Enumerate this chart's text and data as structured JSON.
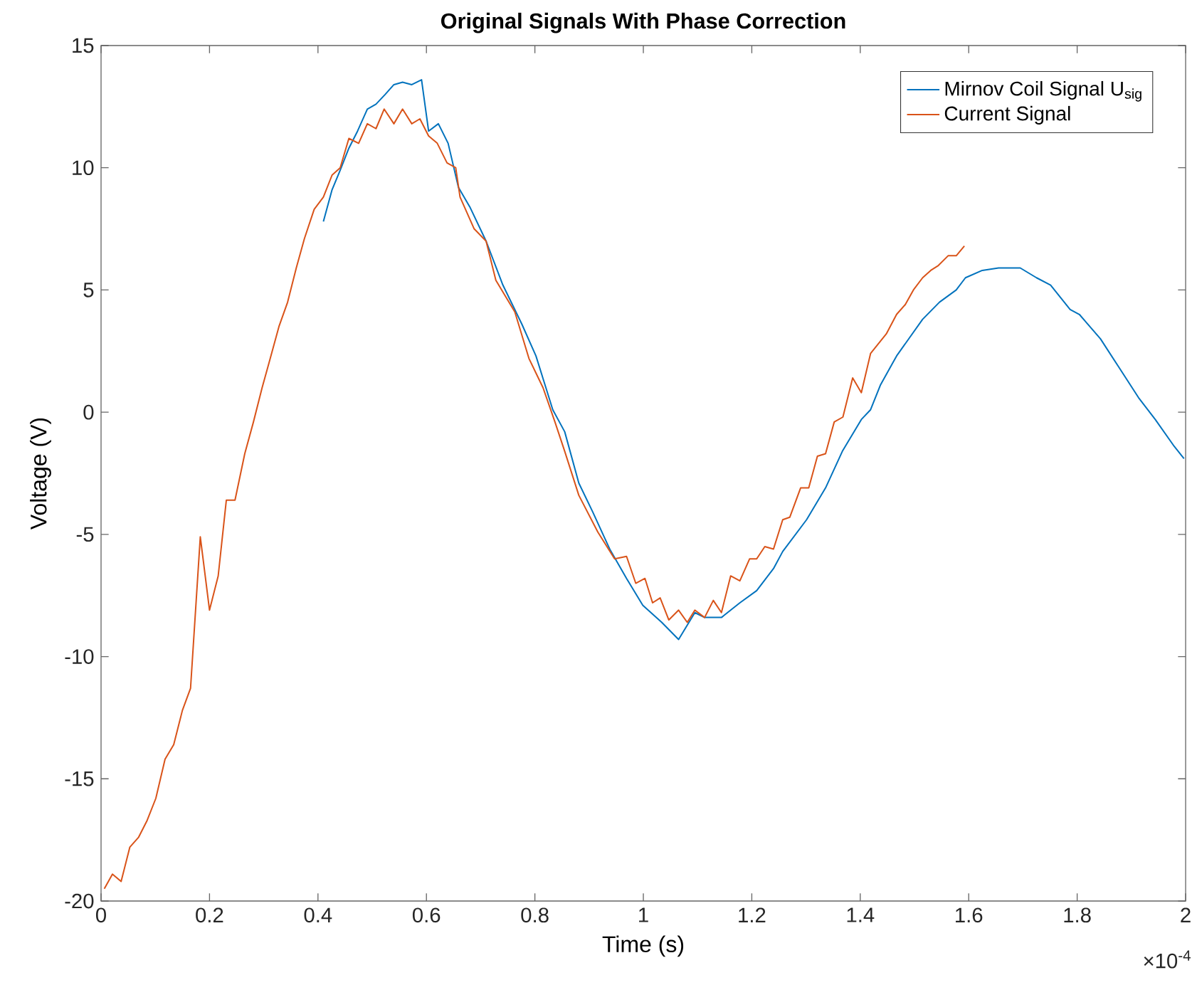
{
  "chart_data": {
    "type": "line",
    "title": "Original Signals With Phase Correction",
    "xlabel": "Time (s)",
    "ylabel": "Voltage (V)",
    "annotations": [
      "×10$^{-4}$"
    ],
    "xlim": [
      0,
      2
    ],
    "ylim": [
      -20,
      15
    ],
    "xticks": [
      0,
      0.2,
      0.4,
      0.6,
      0.8,
      1,
      1.2,
      1.4,
      1.6,
      1.8,
      2
    ],
    "yticks": [
      -20,
      -15,
      -10,
      -5,
      0,
      5,
      10,
      15
    ],
    "legend": "top right",
    "marker": "none",
    "line_style": "solid",
    "series": [
      {
        "name": "Mirnov Coil Signal U$_{sig}$",
        "color": "#0072bd",
        "x": [
          0.41,
          0.426,
          0.441,
          0.457,
          0.473,
          0.491,
          0.507,
          0.524,
          0.54,
          0.556,
          0.573,
          0.591,
          0.604,
          0.622,
          0.64,
          0.659,
          0.68,
          0.71,
          0.741,
          0.776,
          0.802,
          0.833,
          0.855,
          0.881,
          0.907,
          0.938,
          0.969,
          0.999,
          1.034,
          1.065,
          1.095,
          1.113,
          1.144,
          1.178,
          1.209,
          1.24,
          1.257,
          1.301,
          1.336,
          1.367,
          1.402,
          1.419,
          1.437,
          1.467,
          1.515,
          1.546,
          1.577,
          1.594,
          1.625,
          1.655,
          1.695,
          1.725,
          1.751,
          1.787,
          1.804,
          1.843,
          1.878,
          1.913,
          1.944,
          1.979,
          1.997
        ],
        "values": [
          7.8,
          9.1,
          9.9,
          10.8,
          11.5,
          12.4,
          12.6,
          13.0,
          13.4,
          13.5,
          13.4,
          13.6,
          11.5,
          11.8,
          11.0,
          9.2,
          8.4,
          7.0,
          5.2,
          3.6,
          2.3,
          0.1,
          -0.8,
          -2.9,
          -4.1,
          -5.6,
          -6.8,
          -7.9,
          -8.6,
          -9.3,
          -8.2,
          -8.4,
          -8.4,
          -7.8,
          -7.3,
          -6.4,
          -5.7,
          -4.4,
          -3.1,
          -1.6,
          -0.3,
          0.1,
          1.1,
          2.3,
          3.8,
          4.5,
          5.0,
          5.5,
          5.8,
          5.9,
          5.9,
          5.5,
          5.2,
          4.2,
          4.0,
          3.0,
          1.8,
          0.6,
          -0.3,
          -1.4,
          -1.9
        ]
      },
      {
        "name": "Current Signal",
        "color": "#d95319",
        "x": [
          0.006,
          0.021,
          0.037,
          0.053,
          0.069,
          0.085,
          0.101,
          0.118,
          0.134,
          0.15,
          0.165,
          0.183,
          0.2,
          0.216,
          0.231,
          0.247,
          0.265,
          0.281,
          0.297,
          0.312,
          0.328,
          0.344,
          0.36,
          0.375,
          0.393,
          0.41,
          0.426,
          0.441,
          0.457,
          0.475,
          0.491,
          0.507,
          0.522,
          0.54,
          0.556,
          0.573,
          0.588,
          0.604,
          0.62,
          0.638,
          0.654,
          0.662,
          0.688,
          0.71,
          0.728,
          0.763,
          0.789,
          0.815,
          0.837,
          0.855,
          0.881,
          0.916,
          0.947,
          0.969,
          0.986,
          1.003,
          1.017,
          1.031,
          1.047,
          1.065,
          1.081,
          1.095,
          1.113,
          1.129,
          1.144,
          1.161,
          1.178,
          1.196,
          1.209,
          1.224,
          1.24,
          1.257,
          1.27,
          1.29,
          1.305,
          1.321,
          1.336,
          1.352,
          1.368,
          1.386,
          1.402,
          1.419,
          1.448,
          1.467,
          1.483,
          1.498,
          1.515,
          1.53,
          1.544,
          1.562,
          1.577,
          1.592
        ],
        "values": [
          -19.5,
          -18.9,
          -19.2,
          -17.8,
          -17.4,
          -16.7,
          -15.8,
          -14.2,
          -13.6,
          -12.2,
          -11.3,
          -5.1,
          -8.1,
          -6.7,
          -3.6,
          -3.6,
          -1.7,
          -0.4,
          1.0,
          2.2,
          3.5,
          4.5,
          5.9,
          7.1,
          8.3,
          8.8,
          9.7,
          10.0,
          11.2,
          11.0,
          11.8,
          11.6,
          12.4,
          11.8,
          12.4,
          11.8,
          12.0,
          11.3,
          11.0,
          10.2,
          10.0,
          8.8,
          7.5,
          7.0,
          5.4,
          4.1,
          2.2,
          1.0,
          -0.4,
          -1.6,
          -3.4,
          -4.9,
          -6.0,
          -5.9,
          -7.0,
          -6.8,
          -7.8,
          -7.6,
          -8.5,
          -8.1,
          -8.6,
          -8.1,
          -8.4,
          -7.7,
          -8.2,
          -6.7,
          -6.9,
          -6.0,
          -6.0,
          -5.5,
          -5.6,
          -4.4,
          -4.3,
          -3.1,
          -3.1,
          -1.8,
          -1.7,
          -0.4,
          -0.2,
          1.4,
          0.8,
          2.4,
          3.2,
          4.0,
          4.4,
          5.0,
          5.5,
          5.8,
          6.0,
          6.4,
          6.4,
          6.8
        ]
      }
    ]
  }
}
